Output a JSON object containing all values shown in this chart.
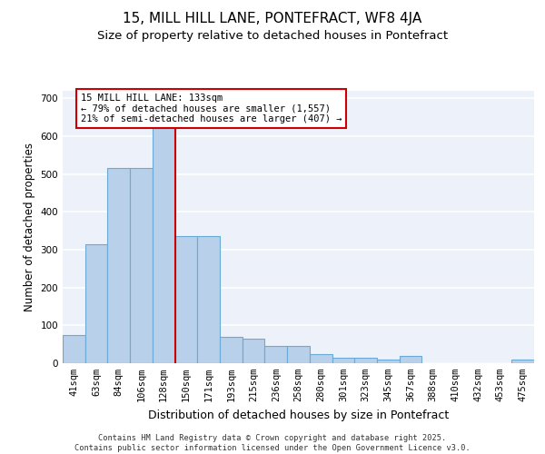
{
  "title": "15, MILL HILL LANE, PONTEFRACT, WF8 4JA",
  "subtitle": "Size of property relative to detached houses in Pontefract",
  "xlabel": "Distribution of detached houses by size in Pontefract",
  "ylabel": "Number of detached properties",
  "footer": "Contains HM Land Registry data © Crown copyright and database right 2025.\nContains public sector information licensed under the Open Government Licence v3.0.",
  "categories": [
    "41sqm",
    "63sqm",
    "84sqm",
    "106sqm",
    "128sqm",
    "150sqm",
    "171sqm",
    "193sqm",
    "215sqm",
    "236sqm",
    "258sqm",
    "280sqm",
    "301sqm",
    "323sqm",
    "345sqm",
    "367sqm",
    "388sqm",
    "410sqm",
    "432sqm",
    "453sqm",
    "475sqm"
  ],
  "bar_heights": [
    75,
    315,
    515,
    515,
    640,
    335,
    335,
    70,
    65,
    45,
    45,
    25,
    15,
    15,
    10,
    20,
    0,
    0,
    0,
    0,
    10
  ],
  "bar_color": "#b8d0ea",
  "bar_edge_color": "#6aaad4",
  "vline_x_index": 4,
  "vline_color": "#cc0000",
  "annotation_text": "15 MILL HILL LANE: 133sqm\n← 79% of detached houses are smaller (1,557)\n21% of semi-detached houses are larger (407) →",
  "annotation_box_edgecolor": "#cc0000",
  "ylim": [
    0,
    720
  ],
  "yticks": [
    0,
    100,
    200,
    300,
    400,
    500,
    600,
    700
  ],
  "bg_color": "#edf2fa",
  "grid_color": "#ffffff",
  "title_fontsize": 11,
  "subtitle_fontsize": 9.5,
  "tick_fontsize": 7.5,
  "ylabel_fontsize": 8.5,
  "xlabel_fontsize": 9
}
